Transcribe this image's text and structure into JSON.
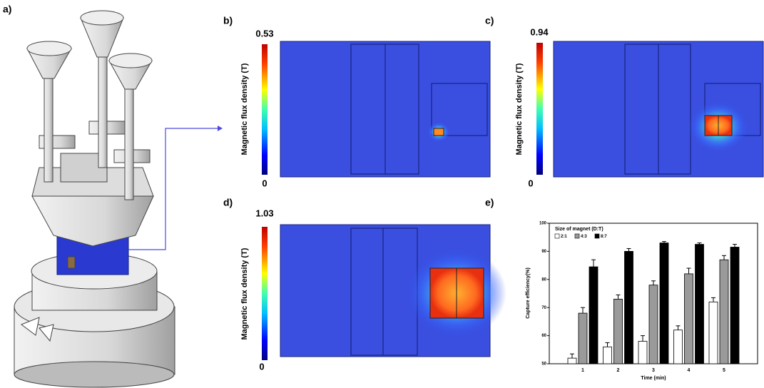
{
  "panel_labels": [
    "a)",
    "b)",
    "c)",
    "d)",
    "e)"
  ],
  "colormaps": [
    {
      "axis_label": "Magnetic flux density (T)",
      "max": 0.53,
      "min": 0
    },
    {
      "axis_label": "Magnetic flux density (T)",
      "max": 0.94,
      "min": 0
    },
    {
      "axis_label": "Magnetic flux density (T)",
      "max": 1.03,
      "min": 0
    }
  ],
  "chart_data": {
    "type": "bar",
    "xlabel": "Time (min)",
    "ylabel": "Capture efficiency(%)",
    "legend_title": "Size of magnet (D:T)",
    "categories": [
      "1",
      "2",
      "3",
      "4",
      "5"
    ],
    "series": [
      {
        "name": "2:1",
        "color": "#ffffff",
        "values": [
          52,
          56,
          58,
          62,
          72
        ],
        "errors": [
          1.5,
          1.5,
          2,
          1.5,
          1.5
        ]
      },
      {
        "name": "4:3",
        "color": "#9a9a9a",
        "values": [
          68,
          73,
          78,
          82,
          87
        ],
        "errors": [
          2,
          1.5,
          1.5,
          2,
          1.5
        ]
      },
      {
        "name": "8:7",
        "color": "#000000",
        "values": [
          84.5,
          90,
          93,
          92.5,
          91.5
        ],
        "errors": [
          2.5,
          1,
          0.5,
          0.5,
          1
        ]
      }
    ],
    "ylim": [
      50,
      100
    ],
    "yticks": [
      50,
      60,
      70,
      80,
      90,
      100
    ]
  }
}
